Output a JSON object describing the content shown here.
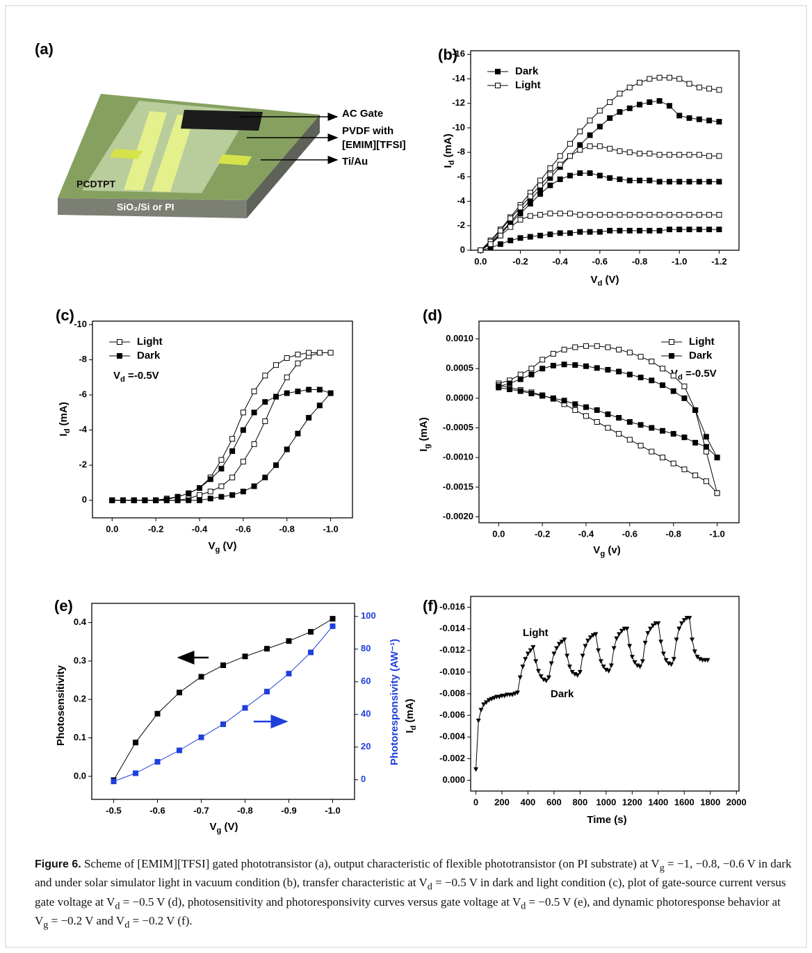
{
  "diagram": {
    "panel": "(a)",
    "labels": [
      "AC Gate",
      "PVDF with",
      "[EMIM][TFSI]",
      "Ti/Au",
      "PCDTPT",
      "SiO₂/Si or PI"
    ]
  },
  "chart_data": [
    {
      "type": "line",
      "panel": "(b)",
      "xlabel": [
        "V",
        "d",
        " (V)"
      ],
      "ylabel": [
        "I",
        "d",
        " (mA)"
      ],
      "x": [
        0,
        -0.05,
        -0.1,
        -0.15,
        -0.2,
        -0.25,
        -0.3,
        -0.35,
        -0.4,
        -0.45,
        -0.5,
        -0.55,
        -0.6,
        -0.65,
        -0.7,
        -0.75,
        -0.8,
        -0.85,
        -0.9,
        -0.95,
        -1,
        -1.05,
        -1.1,
        -1.15,
        -1.2
      ],
      "xlim": [
        0.05,
        -1.3
      ],
      "xticks": [
        {
          "value": 0,
          "label": "0.0"
        },
        -0.2,
        -0.4,
        -0.6,
        -0.8,
        {
          "value": -1,
          "label": "-1.0"
        },
        -1.2
      ],
      "ylim": [
        0,
        -16.3
      ],
      "yticks": [
        0,
        -2,
        -4,
        -6,
        -8,
        -10,
        -12,
        -14,
        -16
      ],
      "legend": "upper left",
      "series": [
        {
          "name": "Dark",
          "color": "#000000",
          "marker": "square-filled",
          "values": [
            [
              0,
              -0.6,
              -1.4,
              -2.3,
              -3.2,
              -4.1,
              -5.0,
              -5.9,
              -6.8,
              -7.7,
              -8.6,
              -9.4,
              -10.1,
              -10.8,
              -11.3,
              -11.6,
              -11.9,
              -12.1,
              -12.2,
              -11.8,
              -11.0,
              -10.8,
              -10.7,
              -10.6,
              -10.5
            ],
            [
              0,
              -0.5,
              -1.3,
              -2.2,
              -3.0,
              -3.8,
              -4.6,
              -5.3,
              -5.8,
              -6.1,
              -6.3,
              -6.3,
              -6.1,
              -5.9,
              -5.8,
              -5.7,
              -5.7,
              -5.7,
              -5.6,
              -5.6,
              -5.6,
              -5.6,
              -5.6,
              -5.6,
              -5.6
            ],
            [
              0,
              -0.2,
              -0.5,
              -0.8,
              -1.0,
              -1.1,
              -1.2,
              -1.3,
              -1.4,
              -1.4,
              -1.5,
              -1.5,
              -1.5,
              -1.6,
              -1.6,
              -1.6,
              -1.6,
              -1.6,
              -1.6,
              -1.7,
              -1.7,
              -1.7,
              -1.7,
              -1.7,
              -1.7
            ]
          ]
        },
        {
          "name": "Light",
          "color": "#000000",
          "marker": "square-open",
          "values": [
            [
              0,
              -0.8,
              -1.7,
              -2.7,
              -3.7,
              -4.7,
              -5.7,
              -6.7,
              -7.7,
              -8.7,
              -9.7,
              -10.6,
              -11.4,
              -12.1,
              -12.8,
              -13.3,
              -13.7,
              -14.0,
              -14.1,
              -14.1,
              -14.0,
              -13.6,
              -13.3,
              -13.2,
              -13.1
            ],
            [
              0,
              -0.7,
              -1.6,
              -2.6,
              -3.5,
              -4.4,
              -5.3,
              -6.2,
              -7.0,
              -7.7,
              -8.2,
              -8.5,
              -8.5,
              -8.3,
              -8.1,
              -8.0,
              -7.9,
              -7.9,
              -7.8,
              -7.8,
              -7.8,
              -7.8,
              -7.8,
              -7.7,
              -7.7
            ],
            [
              0,
              -0.5,
              -1.2,
              -1.9,
              -2.5,
              -2.8,
              -2.9,
              -3.0,
              -3.0,
              -3.0,
              -2.9,
              -2.9,
              -2.9,
              -2.9,
              -2.9,
              -2.9,
              -2.9,
              -2.9,
              -2.9,
              -2.9,
              -2.9,
              -2.9,
              -2.9,
              -2.9,
              -2.9
            ]
          ]
        }
      ]
    },
    {
      "type": "line",
      "panel": "(c)",
      "xlabel": [
        "V",
        "g",
        " (V)"
      ],
      "ylabel": [
        "I",
        "d",
        " (mA)"
      ],
      "annotations": [
        [
          "V",
          "d",
          " =-0.5V"
        ]
      ],
      "x": [
        0,
        -0.05,
        -0.1,
        -0.15,
        -0.2,
        -0.25,
        -0.3,
        -0.35,
        -0.4,
        -0.45,
        -0.5,
        -0.55,
        -0.6,
        -0.65,
        -0.7,
        -0.75,
        -0.8,
        -0.85,
        -0.9,
        -0.95,
        -1
      ],
      "xlim": [
        0.09,
        -1.1
      ],
      "xticks": [
        {
          "value": 0,
          "label": "0.0"
        },
        -0.2,
        -0.4,
        -0.6,
        -0.8,
        {
          "value": -1,
          "label": "-1.0"
        }
      ],
      "ylim": [
        1,
        -10.2
      ],
      "yticks": [
        0,
        -2,
        -4,
        -6,
        -8,
        -10
      ],
      "legend": "upper left",
      "series": [
        {
          "name": "Light",
          "color": "#000000",
          "marker": "square-open",
          "values": [
            [
              0,
              0,
              0,
              0,
              0,
              0,
              0,
              -0.1,
              -0.3,
              -0.5,
              -0.8,
              -1.3,
              -2.2,
              -3.2,
              -4.5,
              -5.9,
              -7.0,
              -7.8,
              -8.2,
              -8.4,
              -8.4
            ],
            [
              0,
              0,
              0,
              0,
              0,
              -0.1,
              -0.2,
              -0.4,
              -0.7,
              -1.3,
              -2.3,
              -3.5,
              -5.0,
              -6.2,
              -7.1,
              -7.7,
              -8.1,
              -8.3,
              -8.4,
              -8.4,
              -8.4
            ]
          ]
        },
        {
          "name": "Dark",
          "color": "#000000",
          "marker": "square-filled",
          "values": [
            [
              0,
              0,
              0,
              0,
              0,
              0,
              0,
              0,
              0,
              -0.1,
              -0.2,
              -0.3,
              -0.5,
              -0.8,
              -1.3,
              -2.0,
              -2.9,
              -3.8,
              -4.7,
              -5.4,
              -6.1
            ],
            [
              0,
              0,
              0,
              0,
              0,
              -0.05,
              -0.2,
              -0.4,
              -0.7,
              -1.2,
              -1.8,
              -2.8,
              -4.0,
              -5.0,
              -5.6,
              -5.9,
              -6.1,
              -6.2,
              -6.3,
              -6.3,
              -6.1
            ]
          ]
        }
      ]
    },
    {
      "type": "line",
      "panel": "(d)",
      "xlabel": [
        "V",
        "g",
        " (v)"
      ],
      "ylabel": [
        "I",
        "g",
        " (mA)"
      ],
      "annotations": [
        [
          "V",
          "d",
          " =-0.5V"
        ]
      ],
      "x": [
        0,
        -0.05,
        -0.1,
        -0.15,
        -0.2,
        -0.25,
        -0.3,
        -0.35,
        -0.4,
        -0.45,
        -0.5,
        -0.55,
        -0.6,
        -0.65,
        -0.7,
        -0.75,
        -0.8,
        -0.85,
        -0.9,
        -0.95,
        -1
      ],
      "xlim": [
        0.09,
        -1.1
      ],
      "xticks": [
        {
          "value": 0,
          "label": "0.0"
        },
        -0.2,
        -0.4,
        -0.6,
        -0.8,
        {
          "value": -1,
          "label": "-1.0"
        }
      ],
      "ylim": [
        -0.0021,
        0.0013
      ],
      "yticks": [
        {
          "value": 0.001,
          "label": "0.0010"
        },
        0.0005,
        {
          "value": 0,
          "label": "0.0000"
        },
        -0.0005,
        {
          "value": -0.001,
          "label": "-0.0010"
        },
        -0.0015,
        {
          "value": -0.002,
          "label": "-0.0020"
        }
      ],
      "legend": "upper right",
      "series": [
        {
          "name": "Light",
          "color": "#000000",
          "marker": "square-open",
          "values": [
            [
              0.00025,
              0.0003,
              0.0004,
              0.0005,
              0.00065,
              0.00075,
              0.00082,
              0.00086,
              0.00088,
              0.00088,
              0.00086,
              0.00082,
              0.00077,
              0.0007,
              0.00062,
              0.0005,
              0.00038,
              0.0002,
              -0.0002,
              -0.0009,
              -0.0016
            ],
            [
              0.00022,
              0.00018,
              0.00014,
              0.0001,
              5e-05,
              -1e-05,
              -0.0001,
              -0.0002,
              -0.0003,
              -0.0004,
              -0.0005,
              -0.0006,
              -0.0007,
              -0.0008,
              -0.0009,
              -0.001,
              -0.0011,
              -0.0012,
              -0.0013,
              -0.0014,
              -0.0016
            ]
          ]
        },
        {
          "name": "Dark",
          "color": "#000000",
          "marker": "square-filled",
          "values": [
            [
              0.0002,
              0.00025,
              0.00032,
              0.0004,
              0.0005,
              0.00055,
              0.00057,
              0.00056,
              0.00054,
              0.00051,
              0.00048,
              0.00045,
              0.0004,
              0.00035,
              0.0003,
              0.00022,
              0.00012,
              0,
              -0.0002,
              -0.00065,
              -0.001
            ],
            [
              0.00018,
              0.00015,
              0.00012,
              8e-05,
              4e-05,
              0,
              -4e-05,
              -0.0001,
              -0.00015,
              -0.0002,
              -0.00027,
              -0.00033,
              -0.0004,
              -0.00045,
              -0.0005,
              -0.00055,
              -0.0006,
              -0.00066,
              -0.00075,
              -0.00082,
              -0.001
            ]
          ]
        }
      ]
    },
    {
      "type": "line",
      "panel": "(e)",
      "xlabel": [
        "V",
        "g",
        " (V)"
      ],
      "ylabel": "Photosensitivity",
      "y2label": "Photoresponsivity (AW⁻¹)",
      "x": [
        -0.5,
        -0.55,
        -0.6,
        -0.65,
        -0.7,
        -0.75,
        -0.8,
        -0.85,
        -0.9,
        -0.95,
        -1
      ],
      "xlim": [
        -0.45,
        -1.05
      ],
      "xticks": [
        -0.5,
        -0.6,
        -0.7,
        -0.8,
        -0.9,
        {
          "value": -1,
          "label": "-1.0"
        }
      ],
      "ylim": [
        -0.06,
        0.45
      ],
      "yticks": [
        {
          "value": 0,
          "label": "0.0"
        },
        0.1,
        0.2,
        0.3,
        0.4
      ],
      "y2lim": [
        -12,
        108
      ],
      "y2ticks": [
        0,
        20,
        40,
        60,
        80,
        100
      ],
      "series": [
        {
          "color": "#000000",
          "marker": "square-filled",
          "values": [
            -0.01,
            0.088,
            0.163,
            0.218,
            0.259,
            0.289,
            0.312,
            0.332,
            0.352,
            0.376,
            0.41
          ]
        },
        {
          "color": "#1f3fdc",
          "marker": "square-filled",
          "axis": "y2",
          "values": [
            -1,
            4,
            11,
            18,
            26,
            34,
            44,
            54,
            65,
            78,
            94
          ]
        }
      ]
    },
    {
      "type": "line",
      "panel": "(f)",
      "xlabel": "Time (s)",
      "ylabel": [
        "I",
        "d",
        " (mA)"
      ],
      "annotations": [
        "Light",
        "Dark"
      ],
      "x": [
        0,
        20,
        40,
        60,
        80,
        100,
        120,
        140,
        160,
        180,
        200,
        220,
        240,
        260,
        280,
        300,
        320,
        340,
        360,
        380,
        400,
        420,
        440,
        460,
        480,
        500,
        520,
        540,
        560,
        580,
        600,
        620,
        640,
        660,
        680,
        700,
        720,
        740,
        760,
        780,
        800,
        820,
        840,
        860,
        880,
        900,
        920,
        940,
        960,
        980,
        1000,
        1020,
        1040,
        1060,
        1080,
        1100,
        1120,
        1140,
        1160,
        1180,
        1200,
        1220,
        1240,
        1260,
        1280,
        1300,
        1320,
        1340,
        1360,
        1380,
        1400,
        1420,
        1440,
        1460,
        1480,
        1500,
        1520,
        1540,
        1560,
        1580,
        1600,
        1620,
        1640,
        1660,
        1680,
        1700,
        1720,
        1740,
        1760,
        1780
      ],
      "xlim": [
        -40,
        2020
      ],
      "xticks": [
        0,
        200,
        400,
        600,
        800,
        1000,
        1200,
        1400,
        1600,
        1800,
        2000
      ],
      "ylim": [
        0.001,
        -0.017
      ],
      "yticks": [
        {
          "value": 0,
          "label": "0.000"
        },
        -0.002,
        -0.004,
        -0.006,
        -0.008,
        {
          "value": -0.01,
          "label": "-0.010"
        },
        -0.012,
        -0.014,
        -0.016
      ],
      "series": [
        {
          "color": "#000000",
          "marker": "triangle",
          "values": [
            -0.001,
            -0.0055,
            -0.0065,
            -0.007,
            -0.0072,
            -0.0074,
            -0.0075,
            -0.0076,
            -0.0077,
            -0.0077,
            -0.0078,
            -0.0078,
            -0.0079,
            -0.0079,
            -0.0079,
            -0.008,
            -0.0081,
            -0.0095,
            -0.0105,
            -0.0112,
            -0.0117,
            -0.012,
            -0.0123,
            -0.011,
            -0.0101,
            -0.0096,
            -0.0093,
            -0.0092,
            -0.0095,
            -0.0108,
            -0.0117,
            -0.0122,
            -0.0126,
            -0.0128,
            -0.013,
            -0.0115,
            -0.0105,
            -0.01,
            -0.0098,
            -0.0097,
            -0.01,
            -0.0115,
            -0.0124,
            -0.0129,
            -0.0132,
            -0.0134,
            -0.0135,
            -0.012,
            -0.011,
            -0.0105,
            -0.0102,
            -0.0101,
            -0.0106,
            -0.0122,
            -0.0131,
            -0.0135,
            -0.0138,
            -0.014,
            -0.014,
            -0.0124,
            -0.0114,
            -0.0109,
            -0.0106,
            -0.0105,
            -0.011,
            -0.0127,
            -0.0136,
            -0.014,
            -0.0143,
            -0.0145,
            -0.0145,
            -0.0128,
            -0.0117,
            -0.0111,
            -0.0108,
            -0.0107,
            -0.0112,
            -0.013,
            -0.014,
            -0.0145,
            -0.0148,
            -0.015,
            -0.015,
            -0.013,
            -0.0119,
            -0.0114,
            -0.0112,
            -0.0111,
            -0.0111,
            -0.0111
          ]
        }
      ]
    }
  ],
  "caption": {
    "label": "Figure 6.",
    "parts": [
      " Scheme of [EMIM][TFSI] gated phototransistor (a), output characteristic of flexible phototransistor (on PI substrate) at V",
      "g",
      " = −1, −0.8, −0.6 V in dark and under solar simulator light in vacuum condition (b), transfer characteristic at V",
      "d",
      " = −0.5 V in dark and light condition (c), plot of gate-source current versus gate voltage at V",
      "d",
      " = −0.5 V (d), photosensitivity and photoresponsivity curves versus gate voltage at V",
      "d",
      " = −0.5 V (e), and dynamic photoresponse behavior at V",
      "g",
      " = −0.2 V and V",
      "d",
      " = −0.2 V (f)."
    ]
  }
}
